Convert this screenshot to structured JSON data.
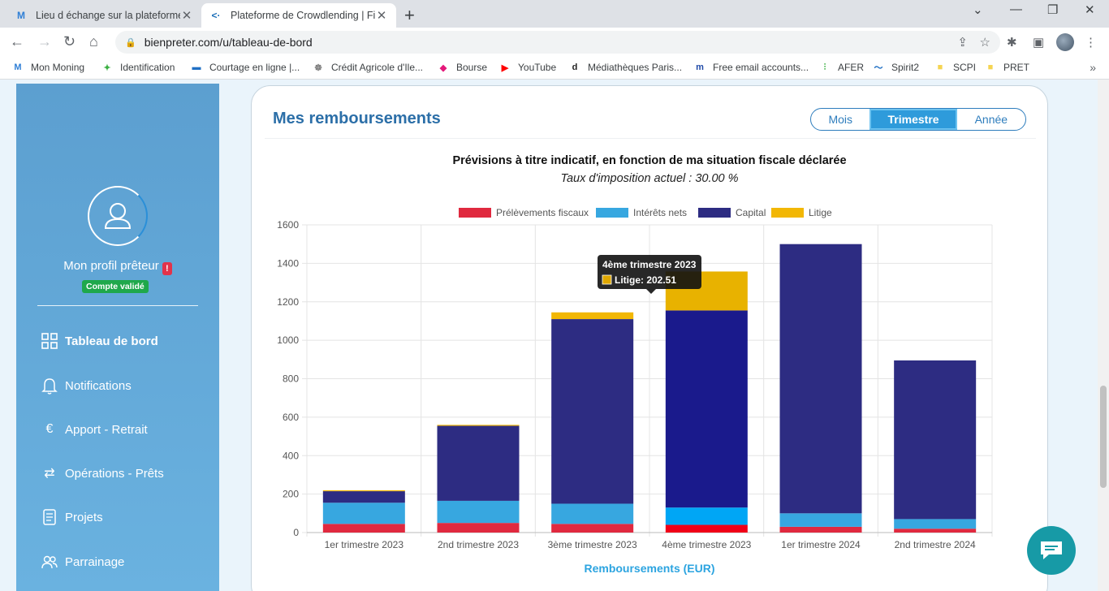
{
  "browser": {
    "tabs": [
      {
        "title": "Lieu d échange sur la plateforme",
        "active": false
      },
      {
        "title": "Plateforme de Crowdlending | Fir",
        "active": true
      }
    ],
    "url": "bienpreter.com/u/tableau-de-bord",
    "bookmarks": [
      {
        "label": "Mon Moning",
        "icon": "moning-icon"
      },
      {
        "label": "Identification",
        "icon": "person-icon"
      },
      {
        "label": "Courtage en ligne |...",
        "icon": "bars-icon"
      },
      {
        "label": "Crédit Agricole d'Ile...",
        "icon": "ca-icon"
      },
      {
        "label": "Bourse",
        "icon": "bourse-icon"
      },
      {
        "label": "YouTube",
        "icon": "youtube-icon"
      },
      {
        "label": "Médiathèques Paris...",
        "icon": "d-icon"
      },
      {
        "label": "Free email accounts...",
        "icon": "m-icon"
      },
      {
        "label": "AFER",
        "icon": "afer-icon"
      },
      {
        "label": "Spirit2",
        "icon": "spirit-icon"
      },
      {
        "label": "SCPI",
        "icon": "folder-icon"
      },
      {
        "label": "PRET",
        "icon": "folder-icon"
      }
    ]
  },
  "sidebar": {
    "profile_name": "Mon profil prêteur",
    "alert": "!",
    "badge": "Compte validé",
    "items": [
      {
        "label": "Tableau de bord",
        "icon": "dashboard-icon",
        "active": true
      },
      {
        "label": "Notifications",
        "icon": "bell-icon",
        "active": false
      },
      {
        "label": "Apport - Retrait",
        "icon": "euro-icon",
        "active": false
      },
      {
        "label": "Opérations - Prêts",
        "icon": "exchange-icon",
        "active": false
      },
      {
        "label": "Projets",
        "icon": "document-icon",
        "active": false
      },
      {
        "label": "Parrainage",
        "icon": "people-icon",
        "active": false
      }
    ]
  },
  "main": {
    "title": "Mes remboursements",
    "periods": [
      "Mois",
      "Trimestre",
      "Année"
    ],
    "selected_period": "Trimestre",
    "subtitle": "Prévisions à titre indicatif, en fonction de ma situation fiscale déclarée",
    "tax_line": "Taux d'imposition actuel : 30.00 %"
  },
  "chart_data": {
    "type": "bar",
    "stacked": true,
    "categories": [
      "1er trimestre 2023",
      "2nd trimestre 2023",
      "3ème trimestre 2023",
      "4ème trimestre 2023",
      "1er trimestre 2024",
      "2nd trimestre 2024"
    ],
    "series": [
      {
        "name": "Prélèvements fiscaux",
        "color": "#e0293f",
        "values": [
          45,
          50,
          45,
          40,
          30,
          20
        ]
      },
      {
        "name": "Intérêts nets",
        "color": "#37a7e0",
        "values": [
          110,
          115,
          105,
          90,
          70,
          50
        ]
      },
      {
        "name": "Capital",
        "color": "#2d2c82",
        "values": [
          60,
          390,
          960,
          1025,
          1400,
          825
        ]
      },
      {
        "name": "Litige",
        "color": "#f2b705",
        "values": [
          5,
          5,
          35,
          202.51,
          0,
          0
        ]
      }
    ],
    "xlabel": "Remboursements (EUR)",
    "ylabel": "",
    "ylim": [
      0,
      1600
    ],
    "yticks": [
      0,
      200,
      400,
      600,
      800,
      1000,
      1200,
      1400,
      1600
    ],
    "legend_position": "top",
    "grid": true,
    "highlight_index": 3,
    "tooltip": {
      "title": "4ème trimestre 2023",
      "label": "Litige: 202.51",
      "color": "#e0a800"
    }
  }
}
